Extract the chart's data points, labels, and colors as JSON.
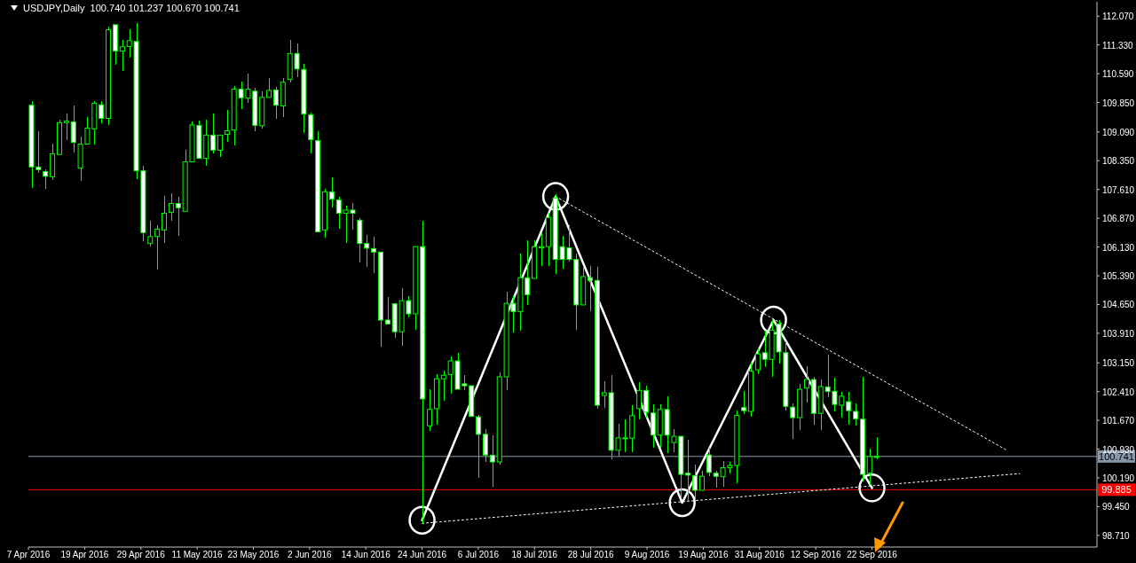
{
  "chart_data": {
    "type": "candlestick",
    "title": "USDJPY,Daily  100.740 101.237 100.670 100.741",
    "color": "#00ff00",
    "categories": [
      "7 Apr 2016",
      null,
      null,
      null,
      null,
      null,
      null,
      null,
      "19 Apr 2016",
      null,
      null,
      null,
      null,
      null,
      null,
      null,
      "29 Apr 2016",
      null,
      null,
      null,
      null,
      null,
      null,
      null,
      "11 May 2016",
      null,
      null,
      null,
      null,
      null,
      null,
      null,
      "23 May 2016",
      null,
      null,
      null,
      null,
      null,
      null,
      null,
      "2 Jun 2016",
      null,
      null,
      null,
      null,
      null,
      null,
      null,
      "14 Jun 2016",
      null,
      null,
      null,
      null,
      null,
      null,
      null,
      "24 Jun 2016",
      null,
      null,
      null,
      null,
      null,
      null,
      null,
      "6 Jul 2016",
      null,
      null,
      null,
      null,
      null,
      null,
      null,
      "18 Jul 2016",
      null,
      null,
      null,
      null,
      null,
      null,
      null,
      "28 Jul 2016",
      null,
      null,
      null,
      null,
      null,
      null,
      null,
      "9 Aug 2016",
      null,
      null,
      null,
      null,
      null,
      null,
      null,
      "19 Aug 2016",
      null,
      null,
      null,
      null,
      null,
      null,
      null,
      "31 Aug 2016",
      null,
      null,
      null,
      null,
      null,
      null,
      null,
      "12 Sep 2016",
      null,
      null,
      null,
      null,
      null,
      null,
      null,
      "22 Sep 2016",
      null,
      null,
      null,
      null,
      null,
      null,
      null,
      null,
      null,
      null,
      null,
      null,
      null,
      null,
      null,
      null,
      null,
      null,
      null,
      null,
      null,
      null,
      null,
      null,
      null,
      null,
      null,
      null,
      null,
      null,
      null,
      null
    ],
    "ohlc": [
      [
        109.78,
        109.89,
        107.66,
        108.19
      ],
      [
        108.19,
        109.1,
        108.03,
        108.12
      ],
      [
        108.07,
        108.12,
        107.62,
        107.95
      ],
      [
        107.94,
        108.8,
        107.86,
        108.53
      ],
      [
        108.51,
        109.41,
        108.48,
        109.33
      ],
      [
        109.33,
        109.56,
        108.89,
        109.37
      ],
      [
        109.35,
        109.76,
        108.57,
        108.82
      ],
      [
        108.16,
        108.98,
        107.83,
        108.78
      ],
      [
        108.78,
        109.48,
        108.74,
        109.19
      ],
      [
        109.17,
        109.89,
        108.77,
        109.83
      ],
      [
        109.79,
        109.89,
        109.32,
        109.44
      ],
      [
        109.44,
        111.81,
        109.26,
        111.72
      ],
      [
        111.85,
        111.87,
        110.83,
        111.17
      ],
      [
        111.17,
        111.47,
        110.65,
        111.28
      ],
      [
        111.29,
        111.74,
        111.01,
        111.44
      ],
      [
        111.42,
        111.9,
        107.87,
        108.09
      ],
      [
        108.09,
        108.21,
        106.27,
        106.5
      ],
      [
        106.22,
        106.81,
        106.14,
        106.4
      ],
      [
        106.4,
        106.69,
        105.55,
        106.59
      ],
      [
        106.57,
        107.45,
        106.24,
        107.0
      ],
      [
        107.02,
        107.52,
        106.81,
        107.25
      ],
      [
        107.25,
        107.42,
        106.42,
        107.14
      ],
      [
        107.05,
        108.62,
        107.02,
        108.32
      ],
      [
        108.32,
        109.37,
        108.28,
        109.27
      ],
      [
        109.26,
        109.39,
        108.37,
        108.41
      ],
      [
        108.41,
        109.41,
        108.23,
        109.01
      ],
      [
        109.01,
        109.56,
        108.55,
        108.62
      ],
      [
        108.62,
        109.05,
        108.45,
        109.01
      ],
      [
        109.03,
        109.65,
        108.83,
        109.12
      ],
      [
        109.14,
        110.28,
        108.74,
        110.19
      ],
      [
        110.19,
        110.39,
        109.68,
        109.97
      ],
      [
        109.96,
        110.6,
        109.85,
        110.19
      ],
      [
        110.14,
        110.23,
        109.1,
        109.26
      ],
      [
        109.25,
        110.14,
        109.17,
        109.98
      ],
      [
        109.98,
        110.47,
        109.94,
        110.16
      ],
      [
        110.17,
        110.26,
        109.42,
        109.78
      ],
      [
        109.76,
        110.47,
        109.47,
        110.37
      ],
      [
        110.44,
        111.46,
        110.37,
        111.11
      ],
      [
        111.11,
        111.37,
        110.5,
        110.71
      ],
      [
        110.7,
        110.85,
        109.06,
        109.55
      ],
      [
        109.53,
        109.59,
        108.53,
        108.89
      ],
      [
        108.87,
        109.12,
        106.48,
        106.52
      ],
      [
        106.57,
        107.63,
        106.37,
        107.55
      ],
      [
        107.55,
        107.92,
        107.14,
        107.36
      ],
      [
        107.34,
        107.41,
        106.59,
        107.0
      ],
      [
        107.0,
        107.19,
        106.24,
        107.08
      ],
      [
        107.08,
        107.27,
        106.57,
        107.0
      ],
      [
        106.82,
        106.87,
        105.73,
        106.22
      ],
      [
        106.22,
        106.45,
        105.63,
        106.1
      ],
      [
        106.09,
        106.4,
        105.45,
        106.0
      ],
      [
        106.0,
        106.02,
        103.56,
        104.25
      ],
      [
        104.25,
        104.84,
        104.11,
        104.15
      ],
      [
        104.67,
        104.7,
        103.79,
        103.95
      ],
      [
        103.95,
        105.07,
        103.58,
        104.75
      ],
      [
        104.75,
        104.86,
        104.32,
        104.41
      ],
      [
        104.41,
        106.18,
        104.0,
        106.14
      ],
      [
        106.14,
        106.81,
        99.01,
        102.22
      ],
      [
        101.53,
        102.47,
        101.39,
        101.95
      ],
      [
        101.97,
        102.85,
        101.56,
        102.74
      ],
      [
        102.74,
        102.94,
        102.17,
        102.83
      ],
      [
        102.85,
        103.31,
        102.36,
        103.2
      ],
      [
        103.2,
        103.41,
        102.44,
        102.47
      ],
      [
        102.61,
        102.83,
        102.44,
        102.56
      ],
      [
        102.56,
        102.59,
        101.74,
        101.77
      ],
      [
        101.76,
        101.81,
        100.19,
        101.31
      ],
      [
        101.31,
        101.44,
        100.6,
        100.78
      ],
      [
        100.77,
        101.29,
        99.96,
        100.6
      ],
      [
        100.6,
        102.91,
        100.54,
        102.79
      ],
      [
        102.79,
        104.99,
        102.44,
        104.68
      ],
      [
        104.68,
        104.9,
        103.93,
        104.47
      ],
      [
        104.47,
        105.96,
        103.97,
        105.34
      ],
      [
        105.34,
        106.31,
        104.64,
        104.9
      ],
      [
        105.32,
        106.31,
        105.29,
        106.14
      ],
      [
        106.11,
        106.48,
        105.64,
        106.14
      ],
      [
        106.14,
        107.02,
        105.64,
        106.89
      ],
      [
        107.39,
        107.5,
        105.43,
        105.81
      ],
      [
        106.14,
        106.41,
        105.57,
        105.81
      ],
      [
        106.11,
        106.69,
        105.75,
        105.81
      ],
      [
        105.81,
        105.95,
        104.0,
        104.64
      ],
      [
        104.64,
        105.64,
        104.61,
        105.37
      ],
      [
        105.34,
        105.64,
        104.47,
        105.27
      ],
      [
        105.27,
        105.61,
        101.97,
        102.06
      ],
      [
        102.31,
        102.67,
        102.0,
        102.38
      ],
      [
        102.38,
        102.83,
        100.67,
        100.9
      ],
      [
        100.9,
        101.59,
        100.74,
        101.22
      ],
      [
        101.21,
        101.7,
        100.85,
        101.22
      ],
      [
        101.21,
        102.06,
        100.86,
        101.79
      ],
      [
        101.97,
        102.65,
        101.7,
        102.44
      ],
      [
        102.44,
        102.56,
        101.74,
        101.88
      ],
      [
        101.86,
        102.08,
        100.97,
        101.29
      ],
      [
        101.29,
        102.08,
        100.97,
        101.95
      ],
      [
        101.95,
        102.29,
        100.83,
        101.29
      ],
      [
        101.1,
        101.45,
        100.85,
        101.26
      ],
      [
        101.26,
        101.3,
        99.69,
        100.28
      ],
      [
        100.31,
        101.17,
        99.57,
        100.26
      ],
      [
        100.25,
        100.53,
        99.64,
        99.87
      ],
      [
        99.87,
        100.37,
        99.83,
        100.23
      ],
      [
        100.78,
        100.97,
        100.23,
        100.33
      ],
      [
        100.31,
        100.37,
        99.94,
        100.23
      ],
      [
        100.22,
        100.62,
        99.96,
        100.45
      ],
      [
        100.45,
        100.6,
        100.3,
        100.51
      ],
      [
        100.51,
        101.92,
        100.05,
        101.8
      ],
      [
        102.0,
        102.42,
        101.83,
        101.92
      ],
      [
        101.9,
        103.15,
        101.76,
        102.94
      ],
      [
        102.97,
        103.52,
        102.85,
        103.38
      ],
      [
        103.41,
        103.97,
        103.04,
        103.24
      ],
      [
        103.24,
        104.25,
        102.79,
        103.99
      ],
      [
        104.15,
        104.25,
        103.13,
        103.43
      ],
      [
        103.41,
        103.7,
        101.92,
        102.03
      ],
      [
        102.01,
        102.1,
        101.19,
        101.74
      ],
      [
        101.74,
        102.61,
        101.42,
        102.47
      ],
      [
        102.5,
        103.06,
        102.12,
        102.72
      ],
      [
        102.72,
        102.79,
        101.56,
        101.85
      ],
      [
        101.85,
        102.72,
        101.42,
        102.54
      ],
      [
        102.53,
        103.35,
        102.26,
        102.41
      ],
      [
        102.42,
        102.76,
        101.9,
        102.08
      ],
      [
        102.06,
        102.41,
        101.74,
        102.29
      ],
      [
        102.15,
        102.4,
        101.56,
        101.92
      ],
      [
        101.9,
        102.1,
        101.53,
        101.71
      ],
      [
        101.7,
        102.79,
        100.1,
        100.28
      ],
      [
        100.31,
        100.94,
        100.01,
        100.74
      ],
      [
        100.74,
        101.237,
        100.67,
        100.741
      ],
      null,
      null,
      null,
      null,
      null,
      null,
      null,
      null,
      null,
      null,
      null,
      null,
      null,
      null,
      null,
      null,
      null,
      null,
      null,
      null,
      null,
      null,
      null,
      null,
      null,
      null,
      null,
      null,
      null,
      null,
      null
    ],
    "series": [
      {
        "type": "line",
        "color": "#ffffff",
        "line_style": "solid",
        "marker": "circle",
        "values": [
          null,
          null,
          null,
          null,
          null,
          null,
          null,
          null,
          null,
          null,
          null,
          null,
          null,
          null,
          null,
          null,
          null,
          null,
          null,
          null,
          null,
          null,
          null,
          null,
          null,
          null,
          null,
          null,
          null,
          null,
          null,
          null,
          null,
          null,
          null,
          null,
          null,
          null,
          null,
          null,
          null,
          null,
          null,
          null,
          null,
          null,
          null,
          null,
          null,
          null,
          null,
          null,
          null,
          null,
          null,
          null,
          99.1,
          null,
          null,
          null,
          null,
          null,
          null,
          null,
          null,
          null,
          null,
          null,
          null,
          null,
          null,
          null,
          null,
          null,
          null,
          107.43,
          null,
          null,
          null,
          null,
          null,
          null,
          null,
          null,
          null,
          null,
          null,
          null,
          null,
          null,
          null,
          null,
          null,
          99.55,
          null,
          null,
          null,
          null,
          null,
          null,
          null,
          null,
          null,
          null,
          null,
          null,
          104.25,
          null,
          null,
          null,
          null,
          null,
          null,
          null,
          null,
          null,
          null,
          null,
          null,
          null,
          99.93,
          null,
          null,
          null,
          null,
          null,
          null,
          null,
          null,
          null,
          null,
          null,
          null,
          null,
          null,
          null,
          null,
          null,
          null,
          null,
          null,
          null,
          null,
          null,
          null,
          null,
          null,
          null,
          null,
          null,
          null,
          null,
          null
        ]
      },
      {
        "type": "line",
        "color": "#ffffff",
        "line_style": "dotted",
        "values": [
          null,
          null,
          null,
          null,
          null,
          null,
          null,
          null,
          null,
          null,
          null,
          null,
          null,
          null,
          null,
          null,
          null,
          null,
          null,
          null,
          null,
          null,
          null,
          null,
          null,
          null,
          null,
          null,
          null,
          null,
          null,
          null,
          null,
          null,
          null,
          null,
          null,
          null,
          null,
          null,
          null,
          null,
          null,
          null,
          null,
          null,
          null,
          null,
          null,
          null,
          null,
          null,
          null,
          null,
          null,
          null,
          null,
          null,
          null,
          null,
          null,
          null,
          null,
          null,
          null,
          null,
          null,
          null,
          null,
          null,
          null,
          null,
          null,
          null,
          null,
          107.43,
          null,
          null,
          null,
          null,
          null,
          null,
          null,
          null,
          null,
          null,
          null,
          null,
          null,
          null,
          null,
          null,
          null,
          null,
          null,
          null,
          null,
          null,
          null,
          null,
          null,
          null,
          null,
          null,
          null,
          null,
          null,
          null,
          null,
          null,
          null,
          null,
          null,
          null,
          null,
          null,
          null,
          null,
          null,
          null,
          null,
          null,
          null,
          null,
          null,
          null,
          null,
          null,
          null,
          null,
          null,
          null,
          null,
          null,
          null,
          null,
          null,
          null,
          null,
          100.92,
          null,
          null,
          null,
          null,
          null,
          null,
          null,
          null,
          null,
          null,
          null,
          null,
          null
        ]
      },
      {
        "type": "line",
        "color": "#ffffff",
        "line_style": "dotted",
        "values": [
          null,
          null,
          null,
          null,
          null,
          null,
          null,
          null,
          null,
          null,
          null,
          null,
          null,
          null,
          null,
          null,
          null,
          null,
          null,
          null,
          null,
          null,
          null,
          null,
          null,
          null,
          null,
          null,
          null,
          null,
          null,
          null,
          null,
          null,
          null,
          null,
          null,
          null,
          null,
          null,
          null,
          null,
          null,
          null,
          null,
          null,
          null,
          null,
          null,
          null,
          null,
          null,
          null,
          null,
          null,
          null,
          99.02,
          null,
          null,
          null,
          null,
          null,
          null,
          null,
          null,
          null,
          null,
          null,
          null,
          null,
          null,
          null,
          null,
          null,
          null,
          null,
          null,
          null,
          null,
          null,
          null,
          null,
          null,
          null,
          null,
          null,
          null,
          null,
          null,
          null,
          null,
          null,
          null,
          null,
          null,
          null,
          null,
          null,
          null,
          null,
          null,
          null,
          null,
          null,
          null,
          null,
          null,
          null,
          null,
          null,
          null,
          null,
          null,
          null,
          null,
          null,
          null,
          null,
          null,
          null,
          null,
          null,
          null,
          null,
          null,
          null,
          null,
          null,
          null,
          null,
          null,
          null,
          null,
          null,
          null,
          null,
          null,
          null,
          null,
          null,
          null,
          100.3,
          null,
          null,
          null,
          null,
          null,
          null,
          null,
          null,
          null,
          null,
          null
        ]
      }
    ],
    "ylim": [
      98.41,
      112.44
    ],
    "yticks": [
      {
        "value": 98.71,
        "label": "98.710"
      },
      {
        "value": 99.45,
        "label": "99.450"
      },
      {
        "value": 100.19,
        "label": "100.190"
      },
      {
        "value": 100.93,
        "label": "100.930"
      },
      {
        "value": 101.67,
        "label": "101.670"
      },
      {
        "value": 102.41,
        "label": "102.410"
      },
      {
        "value": 103.15,
        "label": "103.150"
      },
      {
        "value": 103.91,
        "label": "103.910"
      },
      {
        "value": 104.65,
        "label": "104.650"
      },
      {
        "value": 105.39,
        "label": "105.390"
      },
      {
        "value": 106.13,
        "label": "106.130"
      },
      {
        "value": 106.87,
        "label": "106.870"
      },
      {
        "value": 107.61,
        "label": "107.610"
      },
      {
        "value": 108.35,
        "label": "108.350"
      },
      {
        "value": 109.09,
        "label": "109.090"
      },
      {
        "value": 109.85,
        "label": "109.850"
      },
      {
        "value": 110.59,
        "label": "110.590"
      },
      {
        "value": 111.33,
        "label": "111.330"
      },
      {
        "value": 112.07,
        "label": "112.070"
      }
    ],
    "ref_lines": [
      {
        "axis": "y",
        "value": 100.741,
        "label": "100.741",
        "color": "#8899aa"
      },
      {
        "axis": "y",
        "value": 99.885,
        "label": "99.885",
        "color": "#ff0000"
      }
    ]
  }
}
